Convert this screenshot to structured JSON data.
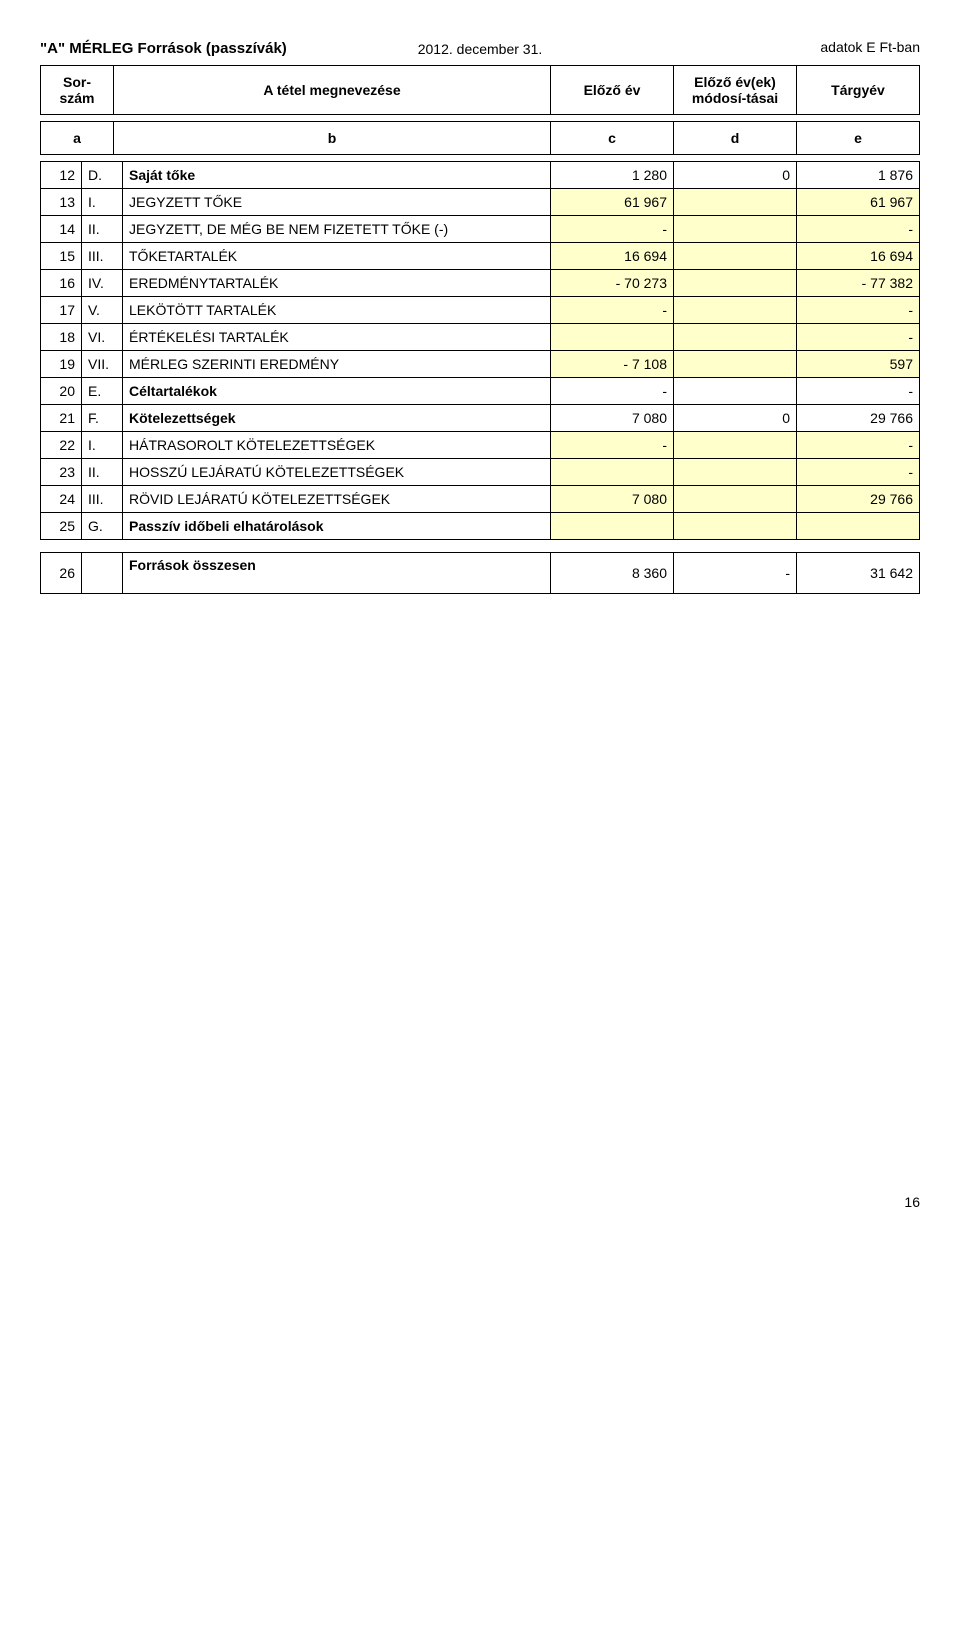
{
  "title": "\"A\" MÉRLEG Források (passzívák)",
  "date": "2012. december 31.",
  "unit": "adatok E Ft-ban",
  "header": {
    "sorszam": "Sor-szám",
    "name": "A tétel megnevezése",
    "c": "Előző év",
    "d": "Előző év(ek) módosí-tásai",
    "e": "Tárgyév"
  },
  "abcde": {
    "a": "a",
    "b": "b",
    "c": "c",
    "d": "d",
    "e": "e"
  },
  "rows": [
    {
      "n": "12",
      "r": "D.",
      "name": "Saját tőke",
      "c": "1 280",
      "d": "0",
      "e": "1 876",
      "bold": true,
      "hl": false
    },
    {
      "n": "13",
      "r": "I.",
      "name": "JEGYZETT TŐKE",
      "c": "61 967",
      "d": "",
      "e": "61 967",
      "bold": false,
      "hl": true
    },
    {
      "n": "14",
      "r": "II.",
      "name": "JEGYZETT, DE MÉG BE NEM FIZETETT TŐKE (-)",
      "c": "-",
      "d": "",
      "e": "-",
      "bold": false,
      "hl": true
    },
    {
      "n": "15",
      "r": "III.",
      "name": "TŐKETARTALÉK",
      "c": "16 694",
      "d": "",
      "e": "16 694",
      "bold": false,
      "hl": true
    },
    {
      "n": "16",
      "r": "IV.",
      "name": "EREDMÉNYTARTALÉK",
      "c": "-   70 273",
      "d": "",
      "e": "-   77 382",
      "bold": false,
      "hl": true
    },
    {
      "n": "17",
      "r": "V.",
      "name": "LEKÖTÖTT TARTALÉK",
      "c": "-",
      "d": "",
      "e": "-",
      "bold": false,
      "hl": true
    },
    {
      "n": "18",
      "r": "VI.",
      "name": "ÉRTÉKELÉSI TARTALÉK",
      "c": "",
      "d": "",
      "e": "-",
      "bold": false,
      "hl": true
    },
    {
      "n": "19",
      "r": "VII.",
      "name": "MÉRLEG SZERINTI EREDMÉNY",
      "c": "-    7 108",
      "d": "",
      "e": "597",
      "bold": false,
      "hl": true
    },
    {
      "n": "20",
      "r": "E.",
      "name": "Céltartalékok",
      "c": "-",
      "d": "",
      "e": "-",
      "bold": true,
      "hl": false
    },
    {
      "n": "21",
      "r": "F.",
      "name": "Kötelezettségek",
      "c": "7 080",
      "d": "0",
      "e": "29 766",
      "bold": true,
      "hl": false
    },
    {
      "n": "22",
      "r": "I.",
      "name": "HÁTRASOROLT KÖTELEZETTSÉGEK",
      "c": "-",
      "d": "",
      "e": "-",
      "bold": false,
      "hl": true
    },
    {
      "n": "23",
      "r": "II.",
      "name": "HOSSZÚ LEJÁRATÚ KÖTELEZETTSÉGEK",
      "c": "",
      "d": "",
      "e": "-",
      "bold": false,
      "hl": true
    },
    {
      "n": "24",
      "r": "III.",
      "name": "RÖVID LEJÁRATÚ KÖTELEZETTSÉGEK",
      "c": "7 080",
      "d": "",
      "e": "29 766",
      "bold": false,
      "hl": true
    },
    {
      "n": "25",
      "r": "G.",
      "name": "Passzív időbeli elhatárolások",
      "c": "",
      "d": "",
      "e": "",
      "bold": true,
      "hl": true
    }
  ],
  "total": {
    "n": "26",
    "name": "Források összesen",
    "c": "8 360",
    "d": "-",
    "e": "31 642"
  },
  "page": "16"
}
